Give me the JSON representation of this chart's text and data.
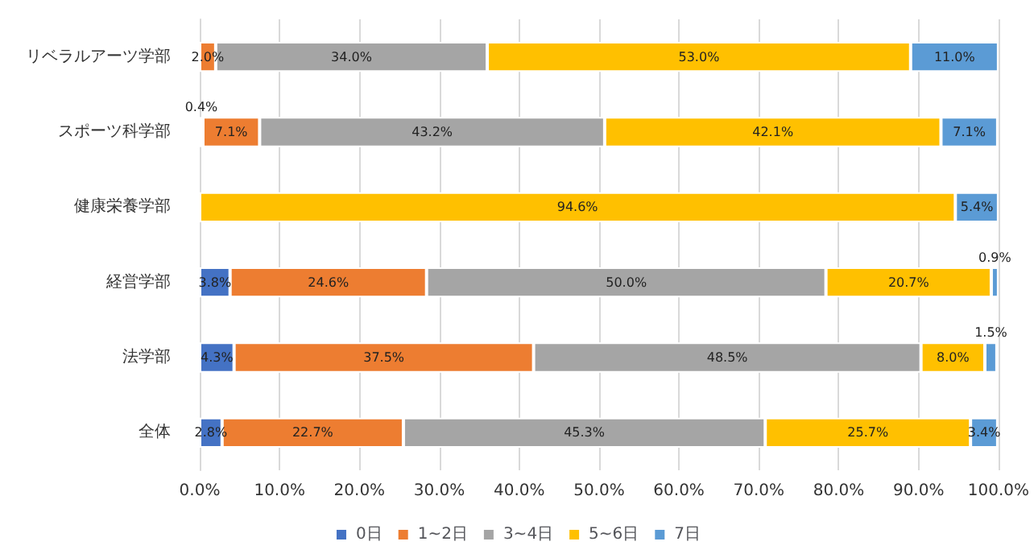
{
  "chart_data": {
    "type": "bar",
    "orientation": "horizontal",
    "stacked": true,
    "categories": [
      "リベラルアーツ学部",
      "スポーツ科学部",
      "健康栄養学部",
      "経営学部",
      "法学部",
      "全体"
    ],
    "series": [
      {
        "name": "0日",
        "color": "#4472c4",
        "values": [
          null,
          0.4,
          null,
          3.8,
          4.3,
          2.8
        ],
        "value_labels": [
          null,
          "0.4%",
          null,
          "3.8%",
          "4.3%",
          "2.8%"
        ]
      },
      {
        "name": "1~2日",
        "color": "#ed7d31",
        "values": [
          2.0,
          7.1,
          null,
          24.6,
          37.5,
          22.7
        ],
        "value_labels": [
          "2.0%",
          "7.1%",
          null,
          "24.6%",
          "37.5%",
          "22.7%"
        ]
      },
      {
        "name": "3~4日",
        "color": "#a5a5a5",
        "values": [
          34.0,
          43.2,
          null,
          50.0,
          48.5,
          45.3
        ],
        "value_labels": [
          "34.0%",
          "43.2%",
          null,
          "50.0%",
          "48.5%",
          "45.3%"
        ]
      },
      {
        "name": "5~6日",
        "color": "#ffc000",
        "values": [
          53.0,
          42.1,
          94.6,
          20.7,
          8.0,
          25.7
        ],
        "value_labels": [
          "53.0%",
          "42.1%",
          "94.6%",
          "20.7%",
          "8.0%",
          "25.7%"
        ]
      },
      {
        "name": "7日",
        "color": "#5b9bd5",
        "values": [
          11.0,
          7.1,
          5.4,
          0.9,
          1.5,
          3.4
        ],
        "value_labels": [
          "11.0%",
          "7.1%",
          "5.4%",
          "0.9%",
          "1.5%",
          "3.4%"
        ]
      }
    ],
    "xlim": [
      0,
      100
    ],
    "xticks": [
      {
        "value": 0,
        "label": "0.0%"
      },
      {
        "value": 10,
        "label": "10.0%"
      },
      {
        "value": 20,
        "label": "20.0%"
      },
      {
        "value": 30,
        "label": "30.0%"
      },
      {
        "value": 40,
        "label": "40.0%"
      },
      {
        "value": 50,
        "label": "50.0%"
      },
      {
        "value": 60,
        "label": "60.0%"
      },
      {
        "value": 70,
        "label": "70.0%"
      },
      {
        "value": 80,
        "label": "80.0%"
      },
      {
        "value": 90,
        "label": "90.0%"
      },
      {
        "value": 100,
        "label": "100.0%"
      }
    ],
    "grid": "x",
    "legend": "bottom"
  }
}
